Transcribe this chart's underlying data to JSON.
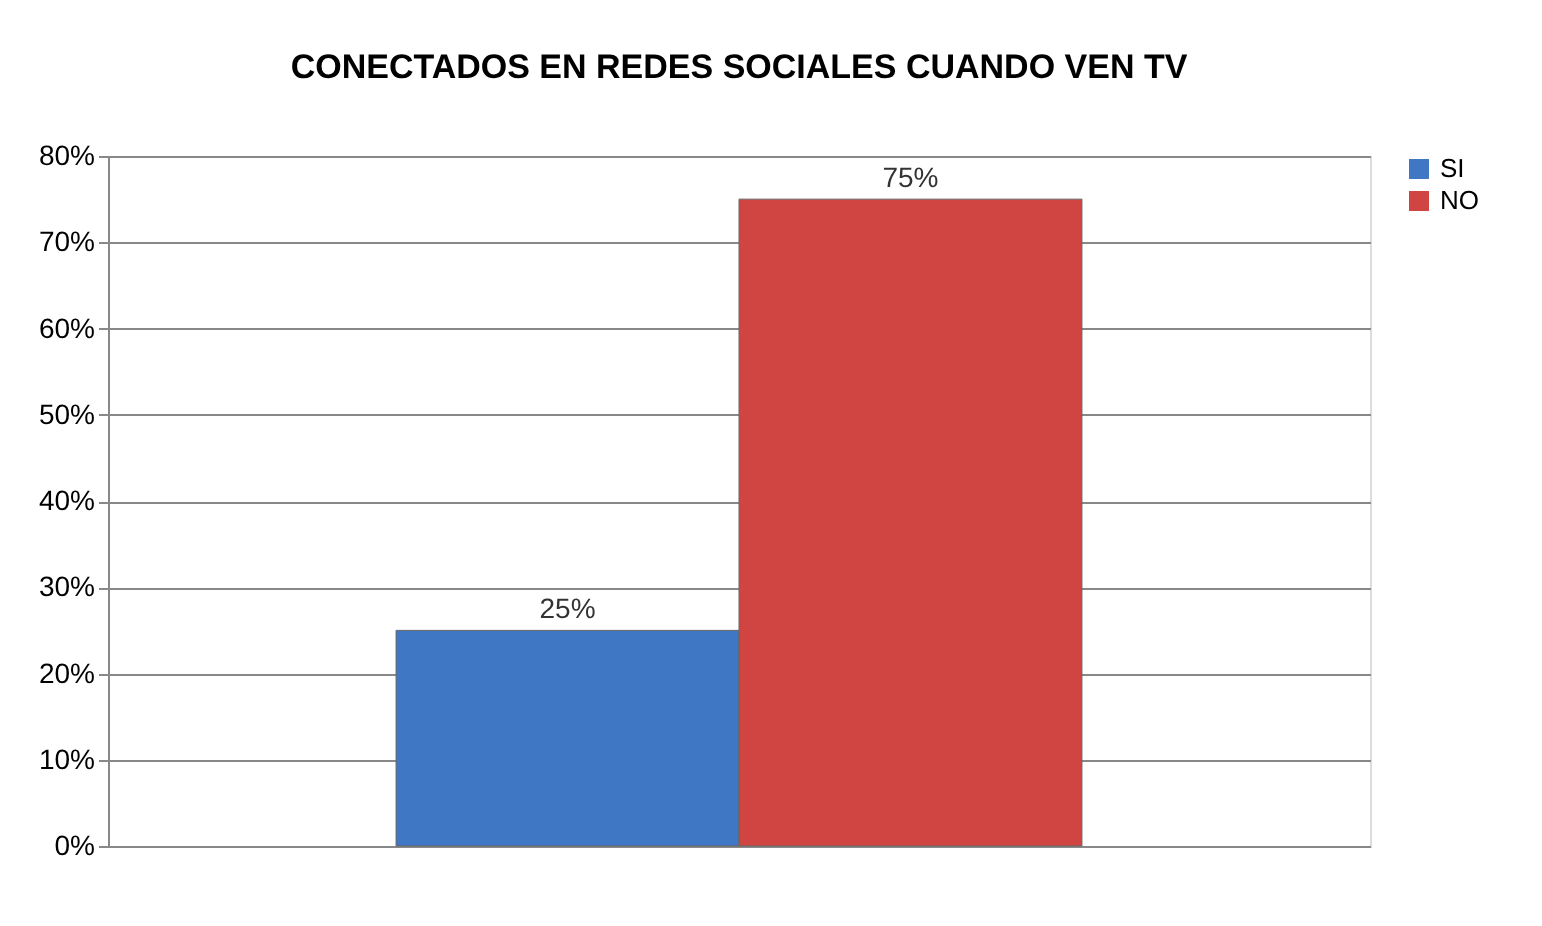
{
  "chart_data": {
    "type": "bar",
    "title": "CONECTADOS EN REDES SOCIALES CUANDO VEN TV",
    "categories": [
      null
    ],
    "series": [
      {
        "name": "SI",
        "color": "#4077c4",
        "values": [
          25
        ],
        "value_labels": [
          "25%"
        ]
      },
      {
        "name": "NO",
        "color": "#d04441",
        "values": [
          75
        ],
        "value_labels": [
          "75%"
        ]
      }
    ],
    "ylim": [
      0,
      80
    ],
    "yticks": [
      {
        "value": 0,
        "label": "0%"
      },
      {
        "value": 10,
        "label": "10%"
      },
      {
        "value": 20,
        "label": "20%"
      },
      {
        "value": 30,
        "label": "30%"
      },
      {
        "value": 40,
        "label": "40%"
      },
      {
        "value": 50,
        "label": "50%"
      },
      {
        "value": 60,
        "label": "60%"
      },
      {
        "value": 70,
        "label": "70%"
      },
      {
        "value": 80,
        "label": "80%"
      }
    ],
    "grid": "y",
    "legend": "right"
  }
}
